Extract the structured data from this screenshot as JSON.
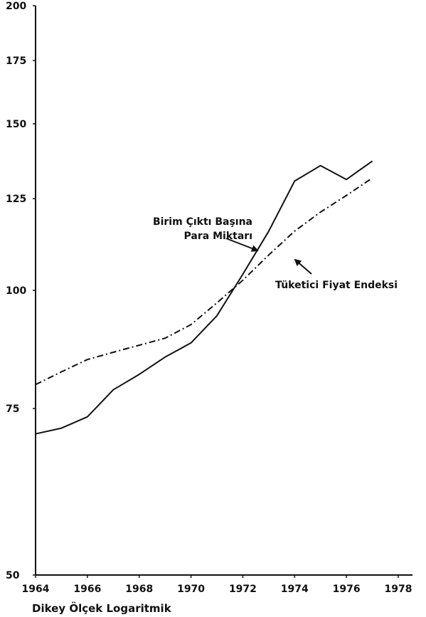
{
  "chart_data": {
    "type": "line",
    "xlabel": "",
    "ylabel": "",
    "note": "Dikey Ölçek Logaritmik",
    "yscale": "log",
    "xlim": [
      1964,
      1978
    ],
    "ylim": [
      50,
      200
    ],
    "xticks": [
      1964,
      1966,
      1968,
      1970,
      1972,
      1974,
      1976,
      1978
    ],
    "yticks": [
      50,
      75,
      100,
      125,
      150,
      175,
      200
    ],
    "grid": false,
    "series": [
      {
        "name": "Birim Çıktı Başına Para Miktarı",
        "style": "solid",
        "color": "#111111",
        "x": [
          1964,
          1965,
          1966,
          1967,
          1968,
          1969,
          1970,
          1971,
          1972,
          1973,
          1974,
          1975,
          1976,
          1977
        ],
        "y": [
          70.5,
          71.5,
          73.5,
          78.5,
          81.5,
          85,
          88,
          94,
          104,
          115.5,
          130.5,
          135.5,
          131,
          137
        ]
      },
      {
        "name": "Tüketici Fiyat Endeksi",
        "style": "dashdot",
        "color": "#111111",
        "x": [
          1964,
          1965,
          1966,
          1967,
          1968,
          1969,
          1970,
          1971,
          1972,
          1973,
          1974,
          1975,
          1976,
          1977
        ],
        "y": [
          79.5,
          82,
          84.5,
          86,
          87.5,
          89,
          92,
          97,
          102.5,
          109,
          115.5,
          121,
          126,
          131.5
        ]
      }
    ],
    "annotations": [
      {
        "lines": [
          "Birim Çıktı Başına",
          "Para Miktarı"
        ],
        "series": 0
      },
      {
        "lines": [
          "Tüketici Fiyat Endeksi"
        ],
        "series": 1
      }
    ]
  }
}
